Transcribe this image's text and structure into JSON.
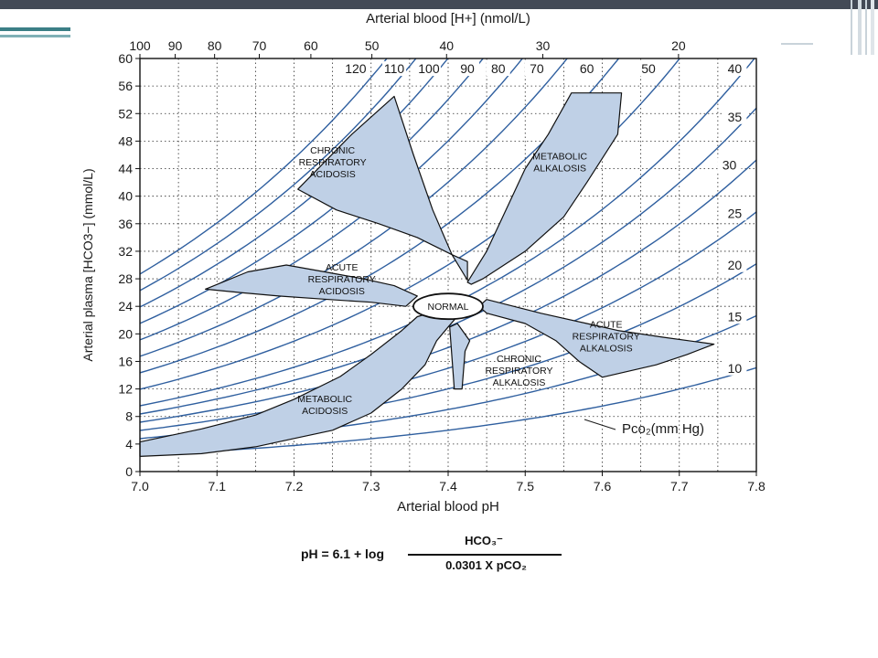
{
  "chart_data": {
    "type": "line",
    "title": "",
    "xlabel": "Arterial blood pH",
    "ylabel": "Arterial plasma [HCO3−] (mmol/L)",
    "x2label": "Arterial blood [H+] (nmol/L)",
    "xlim": [
      7.0,
      7.8
    ],
    "ylim": [
      0,
      60
    ],
    "x_ticks": [
      "7.0",
      "7.1",
      "7.2",
      "7.3",
      "7.4",
      "7.5",
      "7.6",
      "7.7",
      "7.8"
    ],
    "y_ticks": [
      "0",
      "4",
      "8",
      "12",
      "16",
      "20",
      "24",
      "28",
      "32",
      "36",
      "40",
      "44",
      "48",
      "52",
      "56",
      "60"
    ],
    "top_ticks": [
      {
        "h": 100,
        "label": "100"
      },
      {
        "h": 90,
        "label": "90"
      },
      {
        "h": 80,
        "label": "80"
      },
      {
        "h": 70,
        "label": "70"
      },
      {
        "h": 60,
        "label": "60"
      },
      {
        "h": 50,
        "label": "50"
      },
      {
        "h": 40,
        "label": "40"
      },
      {
        "h": 30,
        "label": "30"
      },
      {
        "h": 20,
        "label": "20"
      }
    ],
    "grid": true,
    "isobar_unit": "Pco₂(mm Hg)",
    "isobars": [
      10,
      15,
      20,
      25,
      30,
      35,
      40,
      50,
      60,
      70,
      80,
      90,
      100,
      110,
      120
    ],
    "isobar_labels": [
      "120",
      "110",
      "100",
      "90",
      "80",
      "70",
      "60",
      "50",
      "40",
      "35",
      "30",
      "25",
      "20",
      "15",
      "10"
    ],
    "regions": [
      {
        "name": "CHRONIC\nRESPIRATORY\nACIDOSIS",
        "label_pos": [
          7.25,
          44.5
        ],
        "polygon": [
          [
            7.205,
            41
          ],
          [
            7.275,
            49
          ],
          [
            7.33,
            54.5
          ],
          [
            7.355,
            46
          ],
          [
            7.38,
            38
          ],
          [
            7.405,
            31.5
          ],
          [
            7.425,
            27.8
          ],
          [
            7.425,
            30.5
          ],
          [
            7.405,
            31.5
          ],
          [
            7.36,
            34
          ],
          [
            7.31,
            36
          ],
          [
            7.255,
            38
          ],
          [
            7.205,
            41
          ]
        ]
      },
      {
        "name": "METABOLIC\nALKALOSIS",
        "label_pos": [
          7.545,
          44.5
        ],
        "polygon": [
          [
            7.425,
            27.5
          ],
          [
            7.45,
            32
          ],
          [
            7.475,
            38
          ],
          [
            7.5,
            44
          ],
          [
            7.53,
            49
          ],
          [
            7.56,
            55
          ],
          [
            7.625,
            55
          ],
          [
            7.62,
            49
          ],
          [
            7.58,
            42
          ],
          [
            7.55,
            37
          ],
          [
            7.5,
            32
          ],
          [
            7.445,
            28
          ],
          [
            7.43,
            27.2
          ]
        ]
      },
      {
        "name": "ACUTE\nRESPIRATORY\nACIDOSIS",
        "label_pos": [
          7.262,
          27.5
        ],
        "polygon": [
          [
            7.085,
            26.5
          ],
          [
            7.14,
            29
          ],
          [
            7.19,
            30
          ],
          [
            7.24,
            29
          ],
          [
            7.29,
            28
          ],
          [
            7.33,
            27
          ],
          [
            7.36,
            25.5
          ],
          [
            7.345,
            24
          ],
          [
            7.3,
            24.6
          ],
          [
            7.245,
            25
          ],
          [
            7.18,
            25.5
          ],
          [
            7.13,
            26
          ],
          [
            7.085,
            26.5
          ]
        ]
      },
      {
        "name": "ACUTE\nRESPIRATORY\nALKALOSIS",
        "label_pos": [
          7.605,
          19.2
        ],
        "polygon": [
          [
            7.45,
            25
          ],
          [
            7.52,
            23
          ],
          [
            7.58,
            21.5
          ],
          [
            7.62,
            20.5
          ],
          [
            7.68,
            19.5
          ],
          [
            7.745,
            18.5
          ],
          [
            7.71,
            17
          ],
          [
            7.67,
            15.5
          ],
          [
            7.6,
            13.7
          ],
          [
            7.57,
            16
          ],
          [
            7.54,
            19
          ],
          [
            7.5,
            21.5
          ],
          [
            7.45,
            23
          ],
          [
            7.44,
            24
          ]
        ]
      },
      {
        "name": "CHRONIC\nRESPIRATORY\nALKALOSIS",
        "label_pos": [
          7.492,
          14.2
        ],
        "polygon": [
          [
            7.402,
            21
          ],
          [
            7.408,
            12
          ],
          [
            7.418,
            12
          ],
          [
            7.422,
            17.5
          ],
          [
            7.428,
            19
          ],
          [
            7.412,
            21.5
          ]
        ]
      },
      {
        "name": "METABOLIC\nACIDOSIS",
        "label_pos": [
          7.24,
          9.2
        ],
        "polygon": [
          [
            7.0,
            4.3
          ],
          [
            7.08,
            6.2
          ],
          [
            7.15,
            8.2
          ],
          [
            7.2,
            10.5
          ],
          [
            7.26,
            13.8
          ],
          [
            7.3,
            17
          ],
          [
            7.34,
            20.5
          ],
          [
            7.36,
            22.5
          ],
          [
            7.4,
            23.8
          ],
          [
            7.42,
            23.6
          ],
          [
            7.4,
            21
          ],
          [
            7.385,
            19
          ],
          [
            7.37,
            15.5
          ],
          [
            7.34,
            12
          ],
          [
            7.3,
            8.5
          ],
          [
            7.25,
            6
          ],
          [
            7.2,
            4.8
          ],
          [
            7.15,
            3.6
          ],
          [
            7.08,
            2.6
          ],
          [
            7.0,
            2.2
          ]
        ]
      }
    ],
    "normal": {
      "name": "NORMAL",
      "ph": 7.4,
      "hco3": 24
    }
  },
  "formula": {
    "lhs": "pH = 6.1  + log",
    "numerator": "HCO₃⁻",
    "denominator": "0.0301 X pCO₂"
  },
  "colors": {
    "slide_band": "#434a56",
    "accent_teal": "#3b7f86",
    "region_fill": "#bfd0e6",
    "isobar": "#2f5f9f",
    "grid": "#2a2a2a",
    "text": "#1a1a1a"
  }
}
